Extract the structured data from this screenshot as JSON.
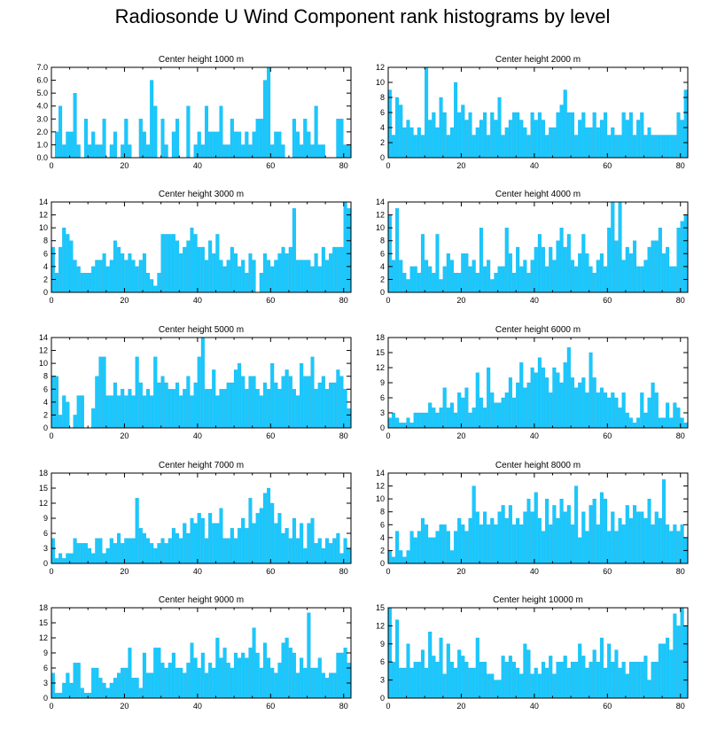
{
  "title": "Radiosonde U Wind Component rank histograms by level",
  "colors": {
    "bar_fill": "#19c8ff",
    "bar_edge": "#0aa9dd",
    "axis": "#000000"
  },
  "chart_data": [
    {
      "type": "bar",
      "title": "Center height 1000 m",
      "xlim": [
        0,
        82
      ],
      "ylim": [
        0,
        7
      ],
      "xticks": [
        0,
        20,
        40,
        60,
        80
      ],
      "yticks": [
        0,
        1,
        2,
        3,
        4,
        5,
        6,
        7
      ],
      "ytick_labels": [
        "0.0",
        "1.0",
        "2.0",
        "3.0",
        "4.0",
        "5.0",
        "6.0",
        "7.0"
      ],
      "values": [
        0,
        2,
        4,
        1,
        2,
        2,
        5,
        1,
        0,
        3,
        1,
        2,
        1,
        1,
        3,
        0,
        1,
        2,
        0,
        1,
        3,
        1,
        0,
        0,
        3,
        2,
        1,
        6,
        4,
        0,
        3,
        1,
        0,
        2,
        3,
        0,
        0,
        4,
        0,
        1,
        2,
        1,
        4,
        2,
        2,
        2,
        4,
        1,
        1,
        3,
        2,
        2,
        1,
        2,
        1,
        2,
        3,
        3,
        6,
        7,
        1,
        2,
        2,
        1,
        0,
        0,
        3,
        2,
        1,
        3,
        2,
        1,
        4,
        1,
        1,
        0,
        0,
        0,
        3,
        3,
        1,
        1
      ]
    },
    {
      "type": "bar",
      "title": "Center height 2000 m",
      "xlim": [
        0,
        82
      ],
      "ylim": [
        0,
        12
      ],
      "xticks": [
        0,
        20,
        40,
        60,
        80
      ],
      "yticks": [
        0,
        2,
        4,
        6,
        8,
        10,
        12
      ],
      "ytick_labels": [
        "0",
        "2",
        "4",
        "6",
        "8",
        "10",
        "12"
      ],
      "values": [
        9,
        3,
        8,
        7,
        4,
        5,
        4,
        3,
        4,
        3,
        12,
        5,
        6,
        4,
        8,
        6,
        3,
        4,
        10,
        6,
        7,
        5,
        6,
        3,
        4,
        5,
        6,
        3,
        6,
        5,
        8,
        3,
        4,
        5,
        6,
        6,
        5,
        4,
        3,
        6,
        5,
        6,
        5,
        3,
        4,
        4,
        6,
        7,
        9,
        6,
        6,
        3,
        5,
        6,
        4,
        4,
        6,
        4,
        5,
        6,
        3,
        4,
        3,
        3,
        6,
        5,
        6,
        3,
        5,
        6,
        3,
        4,
        3,
        3,
        3,
        3,
        3,
        3,
        3,
        6,
        5,
        9
      ]
    },
    {
      "type": "bar",
      "title": "Center height 3000 m",
      "xlim": [
        0,
        82
      ],
      "ylim": [
        0,
        14
      ],
      "xticks": [
        0,
        20,
        40,
        60,
        80
      ],
      "yticks": [
        0,
        2,
        4,
        6,
        8,
        10,
        12,
        14
      ],
      "ytick_labels": [
        "0",
        "2",
        "4",
        "6",
        "8",
        "10",
        "12",
        "14"
      ],
      "values": [
        7,
        3,
        7,
        10,
        9,
        8,
        5,
        4,
        3,
        3,
        3,
        4,
        5,
        5,
        6,
        4,
        5,
        8,
        7,
        6,
        5,
        6,
        5,
        4,
        5,
        6,
        3,
        2,
        1,
        3,
        9,
        9,
        9,
        9,
        8,
        6,
        7,
        8,
        10,
        9,
        7,
        7,
        5,
        8,
        6,
        9,
        5,
        4,
        5,
        7,
        6,
        4,
        5,
        3,
        6,
        5,
        0,
        3,
        6,
        5,
        4,
        5,
        6,
        7,
        6,
        7,
        13,
        5,
        5,
        5,
        5,
        4,
        6,
        4,
        7,
        5,
        6,
        7,
        7,
        7,
        14,
        13
      ]
    },
    {
      "type": "bar",
      "title": "Center height 4000 m",
      "xlim": [
        0,
        82
      ],
      "ylim": [
        0,
        14
      ],
      "xticks": [
        0,
        20,
        40,
        60,
        80
      ],
      "yticks": [
        0,
        2,
        4,
        6,
        8,
        10,
        12,
        14
      ],
      "ytick_labels": [
        "0",
        "2",
        "4",
        "6",
        "8",
        "10",
        "12",
        "14"
      ],
      "values": [
        12,
        5,
        13,
        5,
        3,
        2,
        4,
        4,
        3,
        9,
        5,
        4,
        3,
        9,
        2,
        4,
        6,
        5,
        3,
        3,
        6,
        6,
        4,
        5,
        3,
        10,
        4,
        5,
        2,
        3,
        4,
        4,
        10,
        6,
        3,
        7,
        4,
        5,
        3,
        5,
        7,
        9,
        7,
        4,
        7,
        5,
        8,
        10,
        7,
        9,
        5,
        4,
        6,
        9,
        6,
        4,
        3,
        5,
        6,
        4,
        10,
        14,
        8,
        14,
        5,
        7,
        6,
        8,
        4,
        4,
        5,
        7,
        8,
        8,
        10,
        6,
        7,
        4,
        4,
        10,
        11,
        12
      ]
    },
    {
      "type": "bar",
      "title": "Center height 5000 m",
      "xlim": [
        0,
        82
      ],
      "ylim": [
        0,
        14
      ],
      "xticks": [
        0,
        20,
        40,
        60,
        80
      ],
      "yticks": [
        0,
        2,
        4,
        6,
        8,
        10,
        12,
        14
      ],
      "ytick_labels": [
        "0",
        "2",
        "4",
        "6",
        "8",
        "10",
        "12",
        "14"
      ],
      "values": [
        8,
        8,
        2,
        5,
        4,
        0,
        2,
        5,
        5,
        0,
        0,
        3,
        8,
        11,
        11,
        5,
        5,
        7,
        5,
        6,
        5,
        6,
        5,
        11,
        7,
        5,
        6,
        5,
        11,
        7,
        8,
        7,
        6,
        6,
        7,
        5,
        6,
        8,
        5,
        7,
        11,
        14,
        6,
        6,
        9,
        5,
        6,
        6,
        7,
        7,
        9,
        10,
        8,
        6,
        8,
        8,
        6,
        5,
        7,
        6,
        10,
        7,
        6,
        8,
        9,
        8,
        6,
        5,
        10,
        8,
        8,
        11,
        6,
        7,
        8,
        6,
        7,
        7,
        9,
        8,
        6,
        3
      ]
    },
    {
      "type": "bar",
      "title": "Center height 6000 m",
      "xlim": [
        0,
        82
      ],
      "ylim": [
        0,
        18
      ],
      "xticks": [
        0,
        20,
        40,
        60,
        80
      ],
      "yticks": [
        0,
        3,
        6,
        9,
        12,
        15,
        18
      ],
      "ytick_labels": [
        "0",
        "3",
        "6",
        "9",
        "12",
        "15",
        "18"
      ],
      "values": [
        2,
        3,
        2,
        1,
        1,
        2,
        1,
        3,
        3,
        3,
        3,
        5,
        4,
        3,
        4,
        8,
        4,
        5,
        3,
        7,
        6,
        8,
        3,
        4,
        11,
        6,
        4,
        12,
        7,
        5,
        5,
        6,
        7,
        10,
        6,
        9,
        13,
        8,
        9,
        12,
        11,
        14,
        12,
        10,
        7,
        12,
        11,
        9,
        13,
        16,
        10,
        8,
        9,
        10,
        7,
        15,
        10,
        7,
        8,
        7,
        6,
        7,
        6,
        4,
        7,
        3,
        2,
        1,
        2,
        7,
        3,
        6,
        9,
        7,
        2,
        2,
        5,
        2,
        5,
        4,
        2,
        1
      ]
    },
    {
      "type": "bar",
      "title": "Center height 7000 m",
      "xlim": [
        0,
        82
      ],
      "ylim": [
        0,
        18
      ],
      "xticks": [
        0,
        20,
        40,
        60,
        80
      ],
      "yticks": [
        0,
        3,
        6,
        9,
        12,
        15,
        18
      ],
      "ytick_labels": [
        "0",
        "3",
        "6",
        "9",
        "12",
        "15",
        "18"
      ],
      "values": [
        5,
        1,
        2,
        1,
        2,
        2,
        5,
        4,
        4,
        4,
        3,
        2,
        5,
        5,
        2,
        3,
        5,
        4,
        6,
        4,
        5,
        5,
        5,
        13,
        7,
        6,
        5,
        4,
        3,
        4,
        5,
        4,
        5,
        7,
        6,
        5,
        8,
        6,
        9,
        8,
        10,
        9,
        5,
        10,
        8,
        8,
        11,
        5,
        5,
        7,
        5,
        7,
        9,
        7,
        13,
        8,
        10,
        11,
        14,
        15,
        12,
        8,
        10,
        6,
        7,
        5,
        9,
        5,
        8,
        3,
        8,
        9,
        4,
        5,
        3,
        5,
        4,
        5,
        6,
        2,
        5,
        3
      ]
    },
    {
      "type": "bar",
      "title": "Center height 8000 m",
      "xlim": [
        0,
        82
      ],
      "ylim": [
        0,
        14
      ],
      "xticks": [
        0,
        20,
        40,
        60,
        80
      ],
      "yticks": [
        0,
        2,
        4,
        6,
        8,
        10,
        12,
        14
      ],
      "ytick_labels": [
        "0",
        "2",
        "4",
        "6",
        "8",
        "10",
        "12",
        "14"
      ],
      "values": [
        2,
        1,
        5,
        2,
        1,
        2,
        5,
        4,
        5,
        7,
        6,
        4,
        4,
        5,
        6,
        6,
        5,
        2,
        5,
        7,
        6,
        5,
        7,
        12,
        8,
        6,
        8,
        6,
        7,
        6,
        8,
        9,
        7,
        9,
        6,
        7,
        6,
        8,
        10,
        8,
        11,
        7,
        5,
        10,
        6,
        9,
        7,
        10,
        8,
        9,
        6,
        12,
        4,
        8,
        5,
        9,
        10,
        6,
        11,
        10,
        5,
        8,
        5,
        7,
        6,
        9,
        7,
        9,
        8,
        8,
        7,
        10,
        6,
        8,
        7,
        13,
        6,
        5,
        6,
        5,
        6,
        4
      ]
    },
    {
      "type": "bar",
      "title": "Center height 9000 m",
      "xlim": [
        0,
        82
      ],
      "ylim": [
        0,
        18
      ],
      "xticks": [
        0,
        20,
        40,
        60,
        80
      ],
      "yticks": [
        0,
        3,
        6,
        9,
        12,
        15,
        18
      ],
      "ytick_labels": [
        "0",
        "3",
        "6",
        "9",
        "12",
        "15",
        "18"
      ],
      "values": [
        5,
        1,
        1,
        3,
        5,
        3,
        7,
        7,
        2,
        1,
        1,
        6,
        6,
        4,
        3,
        2,
        3,
        4,
        5,
        6,
        6,
        10,
        4,
        4,
        2,
        9,
        5,
        5,
        10,
        10,
        7,
        6,
        7,
        9,
        6,
        6,
        5,
        7,
        11,
        8,
        6,
        9,
        5,
        7,
        6,
        12,
        8,
        10,
        7,
        6,
        9,
        8,
        9,
        8,
        10,
        14,
        9,
        6,
        11,
        8,
        6,
        5,
        7,
        11,
        12,
        10,
        9,
        5,
        8,
        6,
        17,
        6,
        6,
        8,
        5,
        4,
        5,
        5,
        9,
        9,
        10,
        7
      ]
    },
    {
      "type": "bar",
      "title": "Center height 10000 m",
      "xlim": [
        0,
        82
      ],
      "ylim": [
        0,
        15
      ],
      "xticks": [
        0,
        20,
        40,
        60,
        80
      ],
      "yticks": [
        0,
        3,
        6,
        9,
        12,
        15
      ],
      "ytick_labels": [
        "0",
        "3",
        "6",
        "9",
        "12",
        "15"
      ],
      "values": [
        15,
        6,
        13,
        5,
        5,
        9,
        5,
        6,
        6,
        8,
        5,
        11,
        7,
        6,
        10,
        4,
        9,
        6,
        5,
        8,
        7,
        6,
        5,
        5,
        10,
        6,
        6,
        4,
        4,
        3,
        3,
        7,
        6,
        7,
        6,
        5,
        4,
        9,
        8,
        4,
        5,
        4,
        6,
        5,
        7,
        4,
        6,
        6,
        7,
        5,
        6,
        6,
        9,
        7,
        5,
        6,
        8,
        6,
        10,
        5,
        9,
        6,
        8,
        5,
        6,
        4,
        6,
        6,
        6,
        6,
        7,
        3,
        6,
        6,
        9,
        9,
        10,
        8,
        14,
        12,
        15,
        12
      ]
    }
  ]
}
